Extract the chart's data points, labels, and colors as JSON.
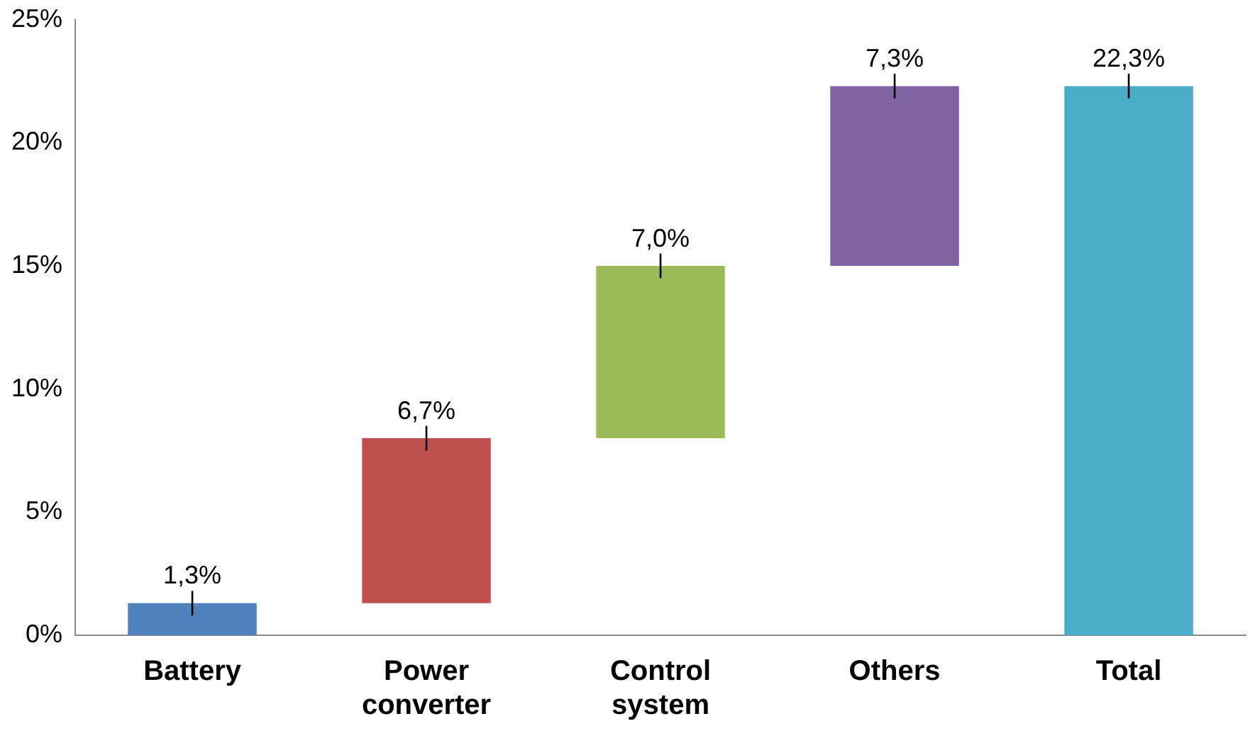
{
  "chart_data": {
    "type": "bar",
    "categories": [
      "Battery",
      "Power converter",
      "Control system",
      "Others",
      "Total"
    ],
    "values": [
      1.3,
      6.7,
      7.0,
      7.3,
      22.3
    ],
    "base": [
      0,
      1.3,
      8.0,
      15.0,
      0
    ],
    "colors": [
      "#4f81bd",
      "#c0504d",
      "#9bbb59",
      "#8064a2",
      "#4bacc6"
    ],
    "errors": [
      0.5,
      0.5,
      0.5,
      0.5,
      0.5
    ],
    "value_labels": [
      "1,3%",
      "6,7%",
      "7,0%",
      "7,3%",
      "22,3%"
    ],
    "ylim": [
      0,
      25
    ],
    "yticks": [
      {
        "value": 0,
        "label": "0%"
      },
      {
        "value": 5,
        "label": "5%"
      },
      {
        "value": 10,
        "label": "10%"
      },
      {
        "value": 15,
        "label": "15%"
      },
      {
        "value": 20,
        "label": "20%"
      },
      {
        "value": 25,
        "label": "25%"
      }
    ],
    "grid": false,
    "legend": false
  }
}
